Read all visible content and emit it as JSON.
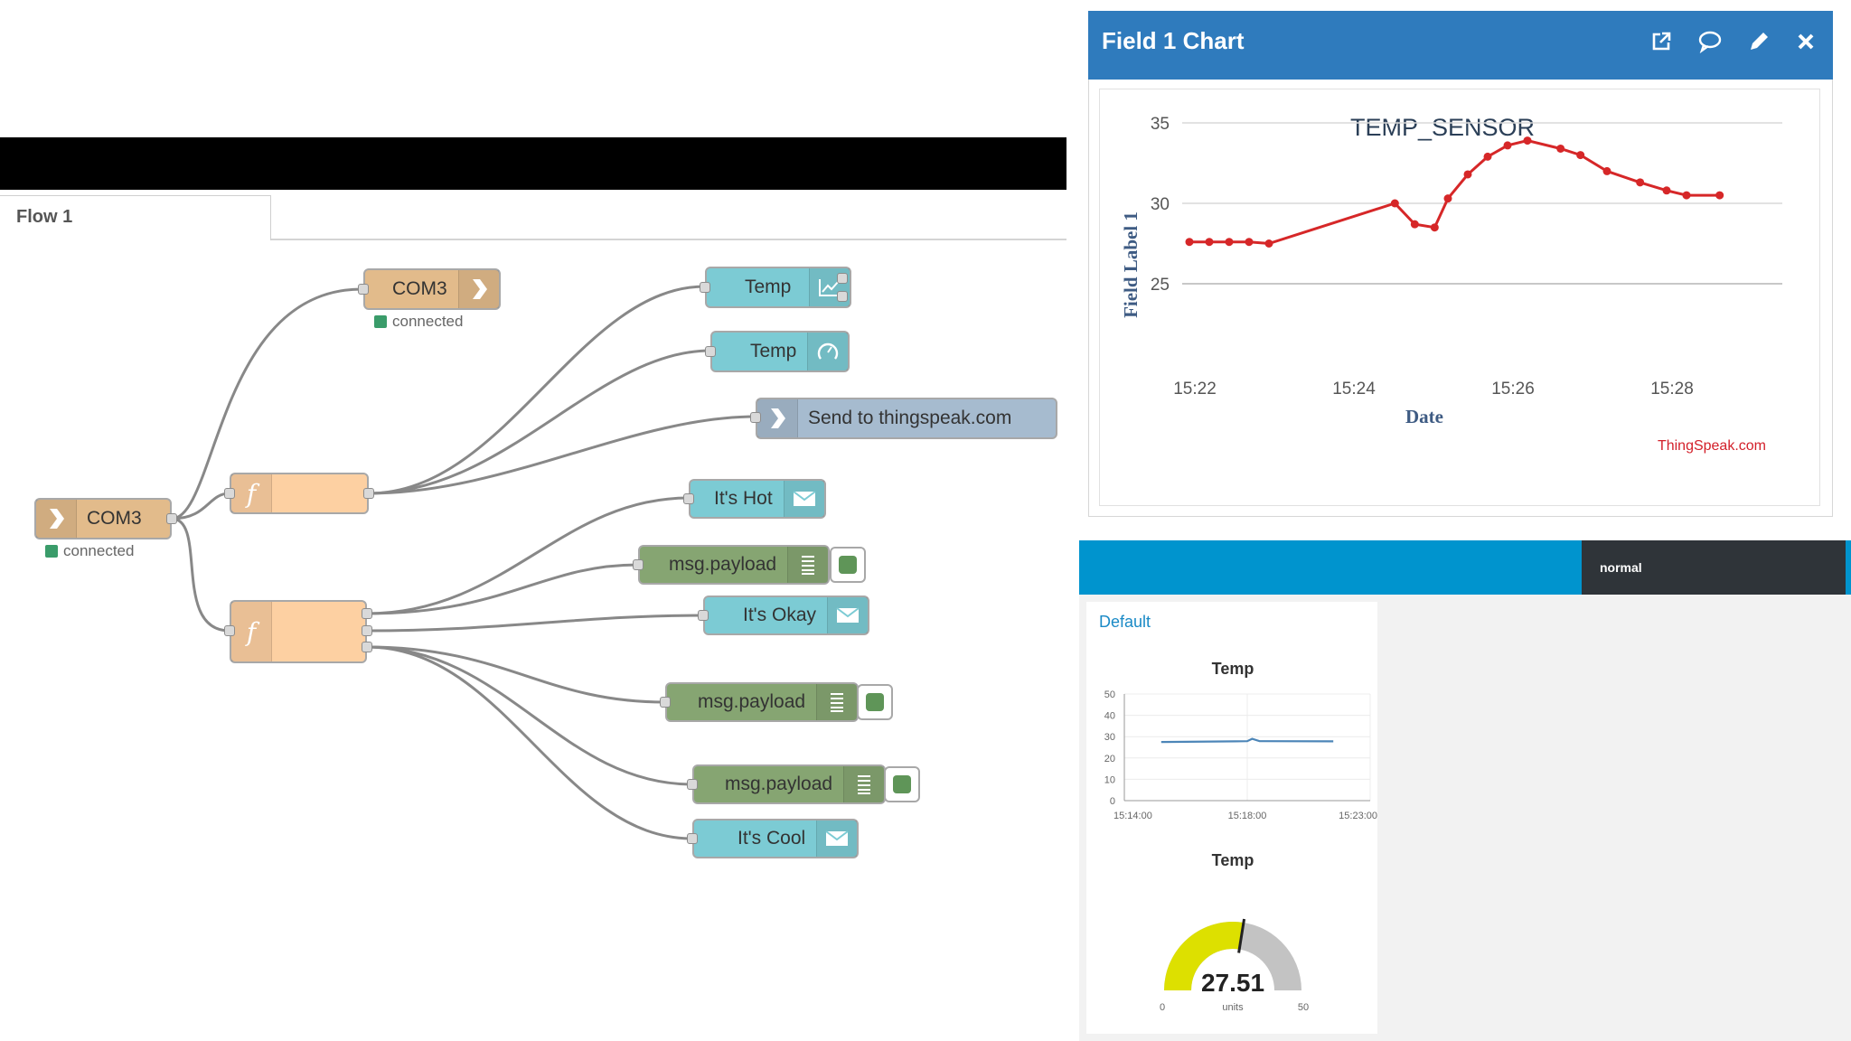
{
  "node_red": {
    "tab": "Flow 1",
    "nodes": {
      "serial_in": {
        "label": "COM3",
        "status": "connected"
      },
      "serial_out": {
        "label": "COM3",
        "status": "connected"
      },
      "temp_chart": {
        "label": "Temp",
        "icon": "chart-icon"
      },
      "temp_gauge": {
        "label": "Temp",
        "icon": "gauge-icon"
      },
      "thingspeak": {
        "label": "Send to thingspeak.com",
        "icon": "arrow-out-icon"
      },
      "hot": {
        "label": "It's Hot",
        "icon": "envelope-icon"
      },
      "debug1": {
        "label": "msg.payload",
        "icon": "list-icon"
      },
      "okay": {
        "label": "It's Okay",
        "icon": "envelope-icon"
      },
      "debug2": {
        "label": "msg.payload",
        "icon": "list-icon"
      },
      "debug3": {
        "label": "msg.payload",
        "icon": "list-icon"
      },
      "cool": {
        "label": "It's Cool",
        "icon": "envelope-icon"
      }
    },
    "colors": {
      "serial": "#e2bb8b",
      "function": "#fdd0a2",
      "dashboard": "#7ccbd4",
      "debug": "#86a572",
      "mqtt": "#a6bbcf"
    }
  },
  "thingspeak": {
    "panel_title": "Field 1 Chart",
    "header_color": "#2f7bbd",
    "credit": "ThingSpeak.com"
  },
  "chart_data": [
    {
      "type": "line",
      "title": "TEMP_SENSOR",
      "xlabel": "Date",
      "ylabel": "Field Label 1",
      "x_ticks": [
        "15:22",
        "15:24",
        "15:26",
        "15:28"
      ],
      "y_ticks": [
        25,
        30,
        35
      ],
      "ylim": [
        25,
        35
      ],
      "xlim_minutes": [
        15.22,
        15.29
      ],
      "x": [
        "15:22:00",
        "15:22:15",
        "15:22:30",
        "15:22:45",
        "15:23:00",
        "15:24:35",
        "15:24:50",
        "15:25:05",
        "15:25:15",
        "15:25:30",
        "15:25:45",
        "15:26:00",
        "15:26:15",
        "15:26:40",
        "15:26:55",
        "15:27:15",
        "15:27:40",
        "15:28:00",
        "15:28:15",
        "15:28:40"
      ],
      "y": [
        27.6,
        27.6,
        27.6,
        27.6,
        27.5,
        30.0,
        28.7,
        28.5,
        30.3,
        31.8,
        32.9,
        33.6,
        33.9,
        33.4,
        33.0,
        32.0,
        31.3,
        30.8,
        30.5,
        30.5
      ],
      "line_color": "#d62728",
      "grid": true
    },
    {
      "type": "line",
      "title": "Temp",
      "x_ticks": [
        "15:14:00",
        "15:18:00",
        "15:23:00"
      ],
      "y_ticks": [
        0,
        10,
        20,
        30,
        40,
        50
      ],
      "ylim": [
        0,
        50
      ],
      "x": [
        0.15,
        0.45,
        0.5,
        0.52,
        0.55,
        0.85
      ],
      "y": [
        27.5,
        27.8,
        27.9,
        29.0,
        27.9,
        27.8
      ],
      "line_color": "#4d86b8",
      "grid": true
    }
  ],
  "dashboard": {
    "mode_label": "normal",
    "group": "Default",
    "chart_title": "Temp",
    "gauge": {
      "title": "Temp",
      "value": "27.51",
      "value_num": 27.51,
      "min": "0",
      "max": "50",
      "units": "units",
      "fill_color": "#dde000",
      "track_color": "#c3c3c3"
    }
  }
}
